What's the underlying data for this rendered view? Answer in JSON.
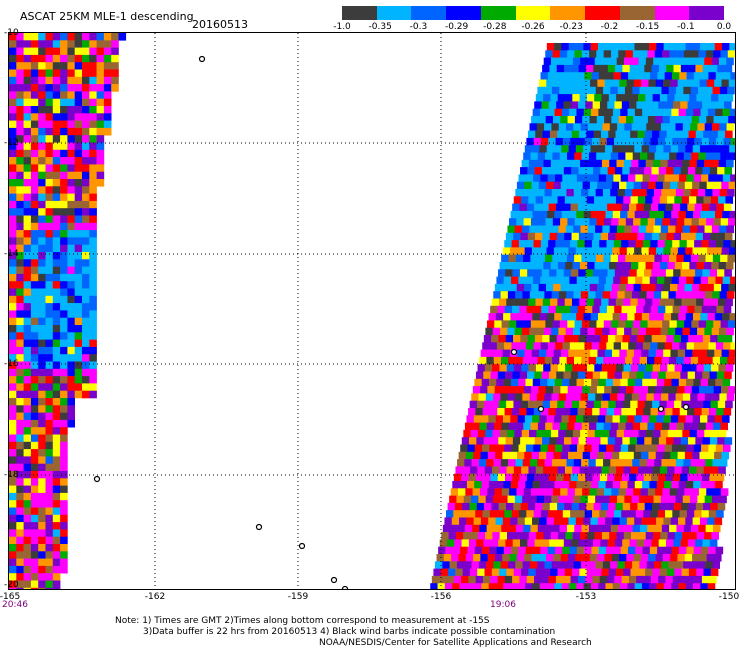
{
  "header": {
    "title": "ASCAT 25KM MLE-1 descending",
    "date": "20160513"
  },
  "colorbar": {
    "colors": [
      "#3c3c3c",
      "#00b4ff",
      "#0064ff",
      "#0000ff",
      "#00aa00",
      "#ffff00",
      "#ff9600",
      "#ff0000",
      "#996633",
      "#ff00ff",
      "#7a00cc"
    ],
    "ticks": [
      "-1.0",
      "-0.35",
      "-0.3",
      "-0.29",
      "-0.28",
      "-0.26",
      "-0.23",
      "-0.2",
      "-0.15",
      "-0.1",
      "0.0"
    ]
  },
  "map": {
    "lon_labels": [
      "-165",
      "-162",
      "-159",
      "-156",
      "-153",
      "-150"
    ],
    "lat_labels": [
      "-10",
      "-12",
      "-14",
      "-16",
      "-18",
      "-20"
    ]
  },
  "times": {
    "left": "20:46",
    "right": "19:06"
  },
  "notes": [
    "Note: 1) Times are GMT 2)Times along bottom correspond to measurement at -15S",
    "3)Data buffer is 22 hrs from 20160513 4) Black wind barbs indicate possible contamination",
    "NOAA/NESDIS/Center for Satellite Applications and Research"
  ]
}
